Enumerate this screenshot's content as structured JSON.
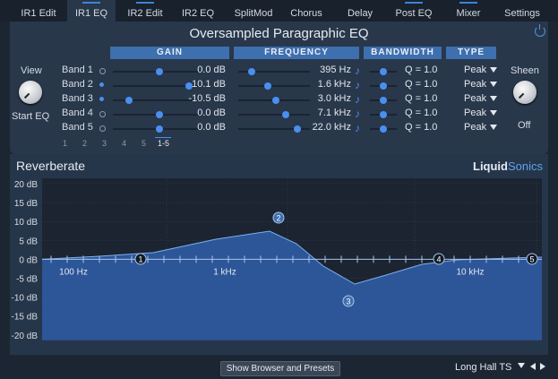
{
  "tabs": [
    {
      "label": "IR1 Edit",
      "indicator": false
    },
    {
      "label": "IR1 EQ",
      "indicator": true,
      "active": true
    },
    {
      "label": "IR2 Edit",
      "indicator": true
    },
    {
      "label": "IR2 EQ",
      "indicator": false
    },
    {
      "label": "SplitMod",
      "indicator": false
    },
    {
      "label": "Chorus",
      "indicator": false
    },
    {
      "label": "Delay",
      "indicator": false
    },
    {
      "label": "Post EQ",
      "indicator": true
    },
    {
      "label": "Mixer",
      "indicator": true
    },
    {
      "label": "Settings",
      "indicator": false
    }
  ],
  "eq": {
    "title": "Oversampled Paragraphic EQ",
    "headers": {
      "gain": "GAIN",
      "frequency": "FREQUENCY",
      "bandwidth": "BANDWIDTH",
      "type": "TYPE"
    },
    "view_label": "View",
    "start_eq_label": "Start EQ",
    "sheen_label": "Sheen",
    "sheen_value": "Off",
    "bands": [
      {
        "name": "Band 1",
        "enabled": false,
        "gain": "0.0 dB",
        "gain_pos": 0.5,
        "freq": "395 Hz",
        "freq_pos": 0.15,
        "q": "Q = 1.0",
        "type": "Peak"
      },
      {
        "name": "Band 2",
        "enabled": true,
        "gain": "10.1 dB",
        "gain_pos": 0.84,
        "freq": "1.6 kHz",
        "freq_pos": 0.38,
        "q": "Q = 1.0",
        "type": "Peak"
      },
      {
        "name": "Band 3",
        "enabled": true,
        "gain": "-10.5 dB",
        "gain_pos": 0.15,
        "freq": "3.0 kHz",
        "freq_pos": 0.5,
        "q": "Q = 1.0",
        "type": "Peak"
      },
      {
        "name": "Band 4",
        "enabled": false,
        "gain": "0.0 dB",
        "gain_pos": 0.5,
        "freq": "7.1 kHz",
        "freq_pos": 0.65,
        "q": "Q = 1.0",
        "type": "Peak"
      },
      {
        "name": "Band 5",
        "enabled": false,
        "gain": "0.0 dB",
        "gain_pos": 0.5,
        "freq": "22.0 kHz",
        "freq_pos": 0.82,
        "q": "Q = 1.0",
        "type": "Peak"
      }
    ],
    "band_select": [
      "1",
      "2",
      "3",
      "4",
      "5",
      "1-5"
    ]
  },
  "graph": {
    "title": "Reverberate",
    "brand_a": "Liquid",
    "brand_b": "Sonics",
    "y_ticks": [
      "20 dB",
      "15 dB",
      "10 dB",
      "5 dB",
      "0 dB",
      "-5 dB",
      "-10 dB",
      "-15 dB",
      "-20 dB"
    ],
    "x_ticks": [
      "100 Hz",
      "1 kHz",
      "10 kHz"
    ],
    "nodes": [
      "1",
      "2",
      "3",
      "4",
      "5"
    ]
  },
  "footer": {
    "show_browser": "Show Browser and Presets",
    "preset": "Long Hall TS"
  },
  "colors": {
    "accent": "#4a8ff0",
    "header": "#3e6fae",
    "fill": "#2e5a9e"
  }
}
